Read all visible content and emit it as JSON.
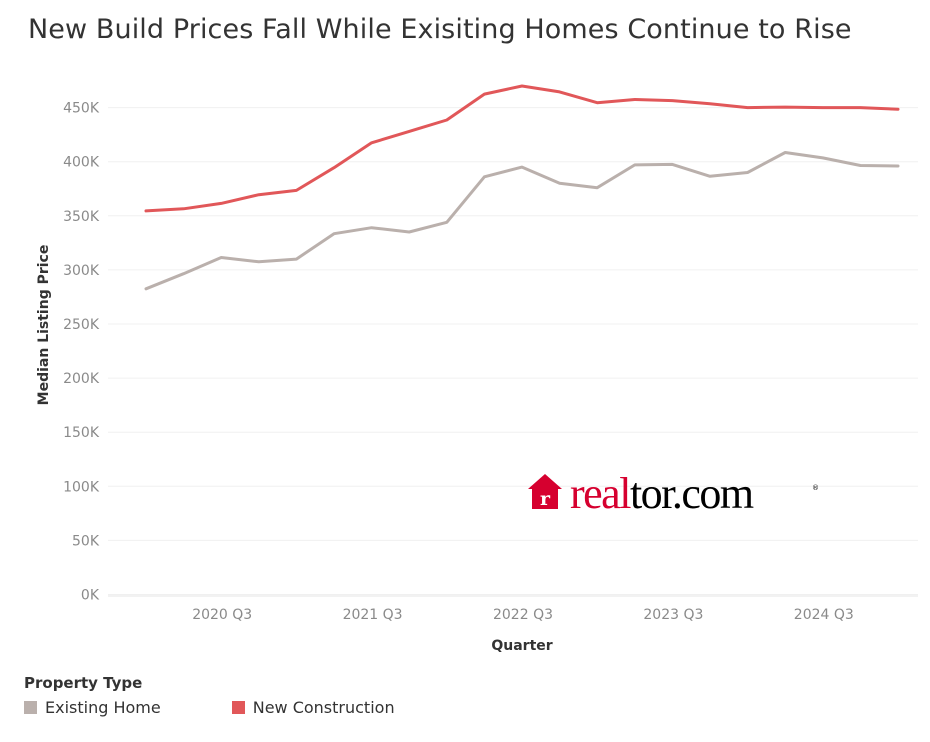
{
  "title": "New Build Prices Fall While Exisiting Homes Continue to Rise",
  "legend": {
    "title": "Property Type",
    "items": [
      {
        "label": "Existing Home",
        "color": "#bab0ac"
      },
      {
        "label": "New Construction",
        "color": "#e15759"
      }
    ]
  },
  "watermark": {
    "text": "realtor.com",
    "color": "#d6002f",
    "icon": "house-r-icon"
  },
  "chart_data": {
    "type": "line",
    "xlabel": "Quarter",
    "ylabel": "Median Listing Price",
    "ylim": [
      0,
      475000
    ],
    "yticks": [
      0,
      50000,
      100000,
      150000,
      200000,
      250000,
      300000,
      350000,
      400000,
      450000
    ],
    "ytick_labels": [
      "0K",
      "50K",
      "100K",
      "150K",
      "200K",
      "250K",
      "300K",
      "350K",
      "400K",
      "450K"
    ],
    "x": [
      "2020 Q1",
      "2020 Q2",
      "2020 Q3",
      "2020 Q4",
      "2021 Q1",
      "2021 Q2",
      "2021 Q3",
      "2021 Q4",
      "2022 Q1",
      "2022 Q2",
      "2022 Q3",
      "2022 Q4",
      "2023 Q1",
      "2023 Q2",
      "2023 Q3",
      "2023 Q4",
      "2024 Q1",
      "2024 Q2",
      "2024 Q3",
      "2024 Q4",
      "2025 Q1"
    ],
    "xtick_labels": [
      {
        "quarter": "2020 Q3",
        "label": "2020 Q3"
      },
      {
        "quarter": "2021 Q3",
        "label": "2021 Q3"
      },
      {
        "quarter": "2022 Q3",
        "label": "2022 Q3"
      },
      {
        "quarter": "2023 Q3",
        "label": "2023 Q3"
      },
      {
        "quarter": "2024 Q3",
        "label": "2024 Q3"
      }
    ],
    "grid": true,
    "series": [
      {
        "name": "Existing Home",
        "color": "#bab0ac",
        "values": [
          282500,
          296500,
          311500,
          307500,
          310000,
          333500,
          339000,
          335000,
          344000,
          386000,
          395000,
          380000,
          376000,
          397000,
          397500,
          386500,
          390000,
          408500,
          403500,
          396500,
          396000
        ]
      },
      {
        "name": "New Construction",
        "color": "#e15759",
        "values": [
          354500,
          356500,
          361500,
          369500,
          373500,
          394500,
          417500,
          428000,
          438500,
          462500,
          470000,
          464500,
          454500,
          457500,
          456500,
          453500,
          450000,
          450500,
          450000,
          450000,
          448500
        ]
      }
    ]
  }
}
